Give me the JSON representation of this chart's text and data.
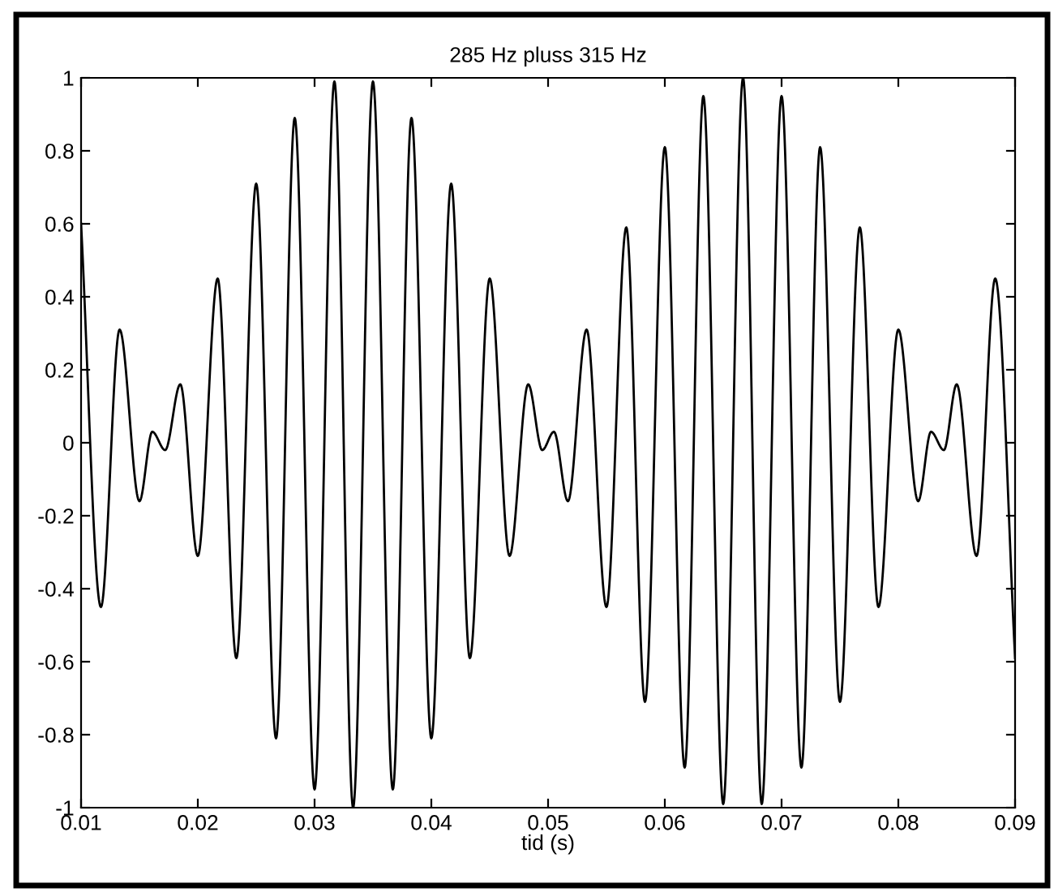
{
  "chart_data": {
    "type": "line",
    "title": "285 Hz pluss 315 Hz",
    "xlabel": "tid (s)",
    "x": [
      0.01,
      0.0117,
      0.0133,
      0.015,
      0.0161,
      0.0172,
      0.0185,
      0.02,
      0.0217,
      0.0233,
      0.025,
      0.0267,
      0.0283,
      0.03,
      0.0317,
      0.0333,
      0.035,
      0.0367,
      0.0383,
      0.04,
      0.0417,
      0.0433,
      0.045,
      0.0467,
      0.0483,
      0.0495,
      0.0505,
      0.0517,
      0.0533,
      0.055,
      0.0567,
      0.0583,
      0.06,
      0.0617,
      0.0633,
      0.065,
      0.0667,
      0.0683,
      0.07,
      0.0717,
      0.0733,
      0.075,
      0.0767,
      0.0783,
      0.08,
      0.0817,
      0.0828,
      0.0839,
      0.085,
      0.0867,
      0.0883,
      0.09
    ],
    "series": [
      {
        "color": "#000000",
        "values": [
          0.6,
          -0.45,
          0.31,
          -0.16,
          0.03,
          -0.02,
          0.16,
          -0.31,
          0.45,
          -0.59,
          0.71,
          -0.81,
          0.89,
          -0.95,
          0.99,
          -1.0,
          0.99,
          -0.95,
          0.89,
          -0.81,
          0.71,
          -0.59,
          0.45,
          -0.31,
          0.16,
          -0.02,
          0.03,
          -0.16,
          0.31,
          -0.45,
          0.59,
          -0.71,
          0.81,
          -0.89,
          0.95,
          -0.99,
          1.0,
          -0.99,
          0.95,
          -0.89,
          0.81,
          -0.71,
          0.59,
          -0.45,
          0.31,
          -0.16,
          0.03,
          -0.02,
          0.16,
          -0.31,
          0.45,
          -0.59
        ]
      }
    ],
    "xlim": [
      0.01,
      0.09
    ],
    "xticks": [
      0.01,
      0.02,
      0.03,
      0.04,
      0.05,
      0.06,
      0.07,
      0.08,
      0.09
    ],
    "ylim": [
      -1,
      1
    ],
    "yticks": [
      -1,
      -0.8,
      -0.6,
      -0.4,
      -0.2,
      0,
      0.2,
      0.4,
      0.6,
      0.8,
      1
    ],
    "grid": false,
    "legend": false,
    "marker": "none",
    "line_style": "solid"
  }
}
